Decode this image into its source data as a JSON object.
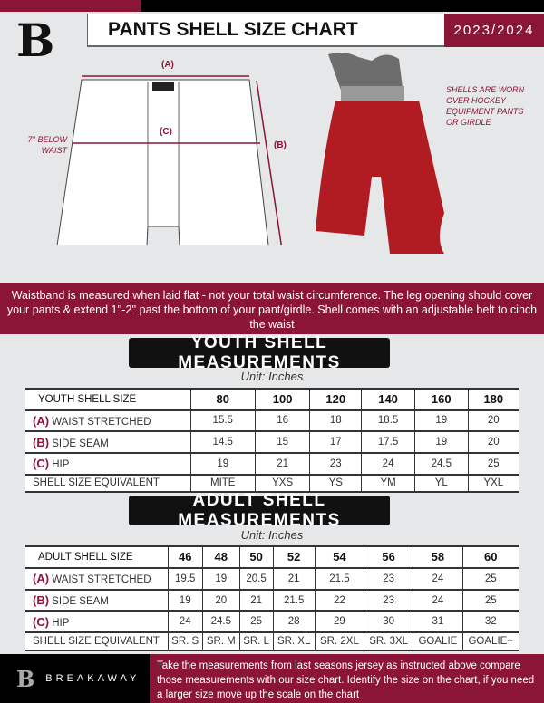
{
  "header": {
    "title": "PANTS SHELL SIZE CHART",
    "season": "2023/2024",
    "logo_letter": "B"
  },
  "diagram": {
    "label_a": "(A)",
    "label_b": "(B)",
    "label_c": "(C)",
    "hip_note": "7'' BELOW WAIST",
    "shell_note": "SHELLS ARE WORN OVER HOCKEY EQUIPMENT PANTS OR GIRDLE"
  },
  "info_band": "Waistband is measured when laid flat - not your total waist circumference. The leg opening should cover your pants & extend 1''-2'' past the bottom of your pant/girdle. Shell comes with an adjustable belt to cinch the waist",
  "youth": {
    "banner": "YOUTH SHELL MEASUREMENTS",
    "unit": "Unit: Inches",
    "header": [
      "YOUTH SHELL SIZE",
      "80",
      "100",
      "120",
      "140",
      "160",
      "180"
    ],
    "rows": [
      {
        "letter": "(A)",
        "label": "WAIST STRETCHED",
        "values": [
          "15.5",
          "16",
          "18",
          "18.5",
          "19",
          "20"
        ]
      },
      {
        "letter": "(B)",
        "label": "SIDE SEAM",
        "values": [
          "14.5",
          "15",
          "17",
          "17.5",
          "19",
          "20"
        ]
      },
      {
        "letter": "(C)",
        "label": "HIP",
        "values": [
          "19",
          "21",
          "23",
          "24",
          "24.5",
          "25"
        ]
      },
      {
        "letter": "",
        "label": "SHELL SIZE EQUIVALENT",
        "values": [
          "MITE",
          "YXS",
          "YS",
          "YM",
          "YL",
          "YXL"
        ]
      }
    ]
  },
  "adult": {
    "banner": "ADULT SHELL MEASUREMENTS",
    "unit": "Unit: Inches",
    "header": [
      "ADULT SHELL SIZE",
      "46",
      "48",
      "50",
      "52",
      "54",
      "56",
      "58",
      "60"
    ],
    "rows": [
      {
        "letter": "(A)",
        "label": "WAIST STRETCHED",
        "values": [
          "19.5",
          "19",
          "20.5",
          "21",
          "21.5",
          "23",
          "24",
          "25"
        ]
      },
      {
        "letter": "(B)",
        "label": "SIDE SEAM",
        "values": [
          "19",
          "20",
          "21",
          "21.5",
          "22",
          "23",
          "24",
          "25"
        ]
      },
      {
        "letter": "(C)",
        "label": "HIP",
        "values": [
          "24",
          "24.5",
          "25",
          "28",
          "29",
          "30",
          "31",
          "32"
        ]
      },
      {
        "letter": "",
        "label": "SHELL SIZE EQUIVALENT",
        "values": [
          "SR. S",
          "SR. M",
          "SR. L",
          "SR. XL",
          "SR. 2XL",
          "SR. 3XL",
          "GOALIE",
          "GOALIE+"
        ]
      }
    ]
  },
  "footer": {
    "brand": "BREAKAWAY",
    "text": "Take the measurements from last seasons jersey as instructed above compare those measurements  with our size chart. Identify the size on the chart, if you need a larger size move up the scale on the chart"
  },
  "colors": {
    "accent": "#8b1537",
    "dark": "#111111",
    "background": "#e6e7e8"
  }
}
